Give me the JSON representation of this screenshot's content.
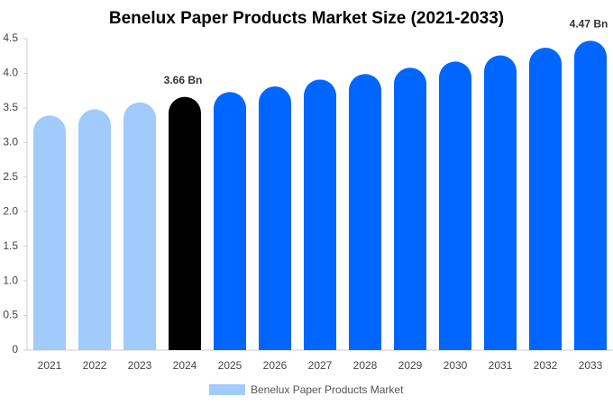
{
  "chart_data": {
    "type": "bar",
    "title": "Benelux Paper Products Market Size (2021-2033)",
    "categories": [
      "2021",
      "2022",
      "2023",
      "2024",
      "2025",
      "2026",
      "2027",
      "2028",
      "2029",
      "2030",
      "2031",
      "2032",
      "2033"
    ],
    "series": [
      {
        "name": "Benelux Paper Products Market",
        "color": "#a0cbfa",
        "colors": [
          "#a0cbfa",
          "#a0cbfa",
          "#a0cbfa",
          "#000000",
          "#0066ff",
          "#0066ff",
          "#0066ff",
          "#0066ff",
          "#0066ff",
          "#0066ff",
          "#0066ff",
          "#0066ff",
          "#0066ff"
        ],
        "values": [
          3.39,
          3.48,
          3.58,
          3.66,
          3.73,
          3.81,
          3.91,
          3.99,
          4.08,
          4.17,
          4.26,
          4.37,
          4.47
        ],
        "value_labels": [
          null,
          null,
          null,
          "3.66 Bn",
          null,
          null,
          null,
          null,
          null,
          null,
          null,
          null,
          "4.47 Bn"
        ]
      }
    ],
    "ylim": [
      0,
      4.5
    ],
    "yticks": [
      0,
      0.5,
      {
        "value": 1,
        "label": "1.0"
      },
      1.5,
      {
        "value": 2,
        "label": "2.0"
      },
      2.5,
      {
        "value": 3,
        "label": "3.0"
      },
      3.5,
      {
        "value": 4,
        "label": "4.0"
      },
      4.5
    ],
    "grid": false,
    "legend": "bottom"
  }
}
